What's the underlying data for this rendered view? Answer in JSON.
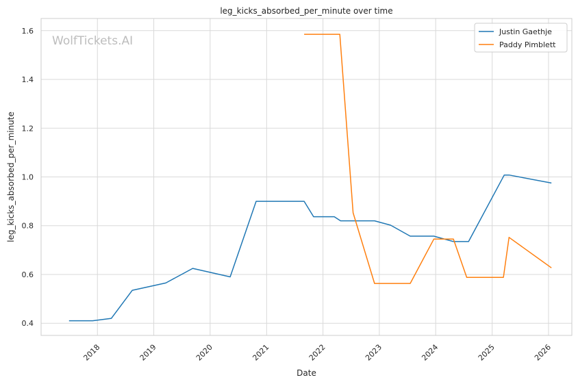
{
  "chart_data": {
    "type": "line",
    "title": "leg_kicks_absorbed_per_minute over time",
    "xlabel": "Date",
    "ylabel": "leg_kicks_absorbed_per_minute",
    "watermark": "WolfTickets.AI",
    "x_ticks": [
      "2018",
      "2019",
      "2020",
      "2021",
      "2022",
      "2023",
      "2024",
      "2025",
      "2026"
    ],
    "y_ticks": [
      "0.4",
      "0.6",
      "0.8",
      "1.0",
      "1.2",
      "1.4",
      "1.6"
    ],
    "xlim": [
      "2017-01-01",
      "2026-06-01"
    ],
    "ylim": [
      0.35,
      1.65
    ],
    "grid": true,
    "legend_position": "top-right",
    "series": [
      {
        "name": "Justin Gaethje",
        "color": "#1f77b4",
        "points": [
          [
            "2017-07-01",
            0.41
          ],
          [
            "2017-12-01",
            0.41
          ],
          [
            "2018-04-01",
            0.42
          ],
          [
            "2018-08-15",
            0.535
          ],
          [
            "2019-03-20",
            0.565
          ],
          [
            "2019-09-10",
            0.625
          ],
          [
            "2020-05-10",
            0.59
          ],
          [
            "2020-10-25",
            0.9
          ],
          [
            "2021-09-01",
            0.9
          ],
          [
            "2021-11-01",
            0.837
          ],
          [
            "2022-03-15",
            0.837
          ],
          [
            "2022-04-25",
            0.82
          ],
          [
            "2022-12-01",
            0.82
          ],
          [
            "2023-03-15",
            0.802
          ],
          [
            "2023-07-20",
            0.757
          ],
          [
            "2023-12-20",
            0.757
          ],
          [
            "2024-04-25",
            0.735
          ],
          [
            "2024-08-01",
            0.735
          ],
          [
            "2025-03-20",
            1.008
          ],
          [
            "2025-04-20",
            1.008
          ],
          [
            "2026-01-20",
            0.975
          ]
        ]
      },
      {
        "name": "Paddy Pimblett",
        "color": "#ff7f0e",
        "points": [
          [
            "2021-09-01",
            1.585
          ],
          [
            "2022-04-20",
            1.585
          ],
          [
            "2022-07-15",
            0.853
          ],
          [
            "2022-12-01",
            0.563
          ],
          [
            "2023-07-20",
            0.563
          ],
          [
            "2023-12-20",
            0.745
          ],
          [
            "2024-04-25",
            0.745
          ],
          [
            "2024-07-20",
            0.588
          ],
          [
            "2025-03-15",
            0.588
          ],
          [
            "2025-04-20",
            0.752
          ],
          [
            "2026-01-20",
            0.627
          ]
        ]
      }
    ]
  }
}
